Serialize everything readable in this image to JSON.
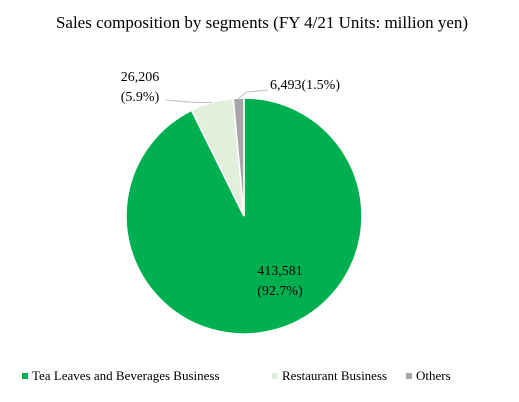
{
  "chart_data": {
    "type": "pie",
    "title": "Sales composition by segments (FY 4/21 Units: million yen)",
    "categories": [
      "Tea Leaves and Beverages Business",
      "Restaurant Business",
      "Others"
    ],
    "values": [
      413581,
      26206,
      6493
    ],
    "value_labels": [
      [
        "413,581",
        "(92.7%)"
      ],
      [
        "26,206",
        "(5.9%)"
      ],
      [
        "6,493(1.5%)"
      ]
    ],
    "colors": [
      "#00b050",
      "#e2efda",
      "#a6a6a6"
    ]
  }
}
